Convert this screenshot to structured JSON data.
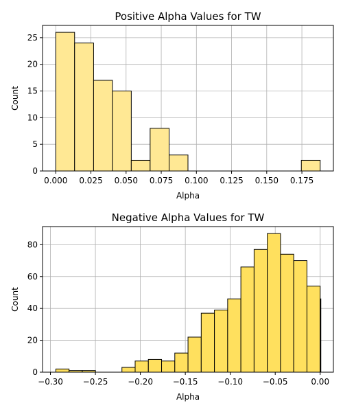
{
  "chart_data": [
    {
      "type": "bar",
      "title": "Positive Alpha Values for TW",
      "xlabel": "Alpha",
      "ylabel": "Count",
      "xlim": [
        -0.0094,
        0.1974
      ],
      "ylim": [
        0,
        27.3
      ],
      "xticks": [
        0.0,
        0.025,
        0.05,
        0.075,
        0.1,
        0.125,
        0.15,
        0.175
      ],
      "xtick_labels": [
        "0.000",
        "0.025",
        "0.050",
        "0.075",
        "0.100",
        "0.125",
        "0.150",
        "0.175"
      ],
      "yticks": [
        0,
        5,
        10,
        15,
        20,
        25
      ],
      "ytick_labels": [
        "0",
        "5",
        "10",
        "15",
        "20",
        "25"
      ],
      "grid": true,
      "bar_color": "#FFE894",
      "bins": [
        {
          "x0": 0.0,
          "x1": 0.0134,
          "count": 26
        },
        {
          "x0": 0.0134,
          "x1": 0.0269,
          "count": 24
        },
        {
          "x0": 0.0269,
          "x1": 0.0403,
          "count": 17
        },
        {
          "x0": 0.0403,
          "x1": 0.0537,
          "count": 15
        },
        {
          "x0": 0.0537,
          "x1": 0.0671,
          "count": 2
        },
        {
          "x0": 0.0671,
          "x1": 0.0806,
          "count": 8
        },
        {
          "x0": 0.0806,
          "x1": 0.094,
          "count": 3
        },
        {
          "x0": 0.094,
          "x1": 0.1074,
          "count": 0
        },
        {
          "x0": 0.1074,
          "x1": 0.1209,
          "count": 0
        },
        {
          "x0": 0.1209,
          "x1": 0.1343,
          "count": 0
        },
        {
          "x0": 0.1343,
          "x1": 0.1477,
          "count": 0
        },
        {
          "x0": 0.1477,
          "x1": 0.1611,
          "count": 0
        },
        {
          "x0": 0.1611,
          "x1": 0.1746,
          "count": 0
        },
        {
          "x0": 0.1746,
          "x1": 0.188,
          "count": 2
        }
      ]
    },
    {
      "type": "bar",
      "title": "Negative Alpha Values for TW",
      "xlabel": "Alpha",
      "ylabel": "Count",
      "xlim": [
        -0.3088,
        0.0147
      ],
      "ylim": [
        0,
        91.35
      ],
      "xticks": [
        -0.3,
        -0.25,
        -0.2,
        -0.15,
        -0.1,
        -0.05,
        0.0
      ],
      "xtick_labels": [
        "−0.30",
        "−0.25",
        "−0.20",
        "−0.15",
        "−0.10",
        "−0.05",
        "0.00"
      ],
      "yticks": [
        0,
        20,
        40,
        60,
        80
      ],
      "ytick_labels": [
        "0",
        "20",
        "40",
        "60",
        "80"
      ],
      "grid": true,
      "bar_color": "#FFE05E",
      "bins": [
        {
          "x0": -0.294,
          "x1": -0.2793,
          "count": 2
        },
        {
          "x0": -0.2793,
          "x1": -0.2646,
          "count": 1
        },
        {
          "x0": -0.2646,
          "x1": -0.2499,
          "count": 1
        },
        {
          "x0": -0.2499,
          "x1": -0.2352,
          "count": 0
        },
        {
          "x0": -0.2352,
          "x1": -0.2205,
          "count": 0
        },
        {
          "x0": -0.2205,
          "x1": -0.2058,
          "count": 3
        },
        {
          "x0": -0.2058,
          "x1": -0.1911,
          "count": 7
        },
        {
          "x0": -0.1911,
          "x1": -0.1764,
          "count": 8
        },
        {
          "x0": -0.1764,
          "x1": -0.1617,
          "count": 7
        },
        {
          "x0": -0.1617,
          "x1": -0.147,
          "count": 12
        },
        {
          "x0": -0.147,
          "x1": -0.1323,
          "count": 22
        },
        {
          "x0": -0.1323,
          "x1": -0.1176,
          "count": 37
        },
        {
          "x0": -0.1176,
          "x1": -0.1029,
          "count": 39
        },
        {
          "x0": -0.1029,
          "x1": -0.0882,
          "count": 46
        },
        {
          "x0": -0.0882,
          "x1": -0.0735,
          "count": 66
        },
        {
          "x0": -0.0735,
          "x1": -0.0588,
          "count": 77
        },
        {
          "x0": -0.0588,
          "x1": -0.0441,
          "count": 87
        },
        {
          "x0": -0.0441,
          "x1": -0.0294,
          "count": 74
        },
        {
          "x0": -0.0294,
          "x1": -0.0147,
          "count": 70
        },
        {
          "x0": -0.0147,
          "x1": 0.0,
          "count": 54
        },
        {
          "x0": 0.0,
          "x1": 0.0,
          "count": 46
        }
      ]
    }
  ]
}
